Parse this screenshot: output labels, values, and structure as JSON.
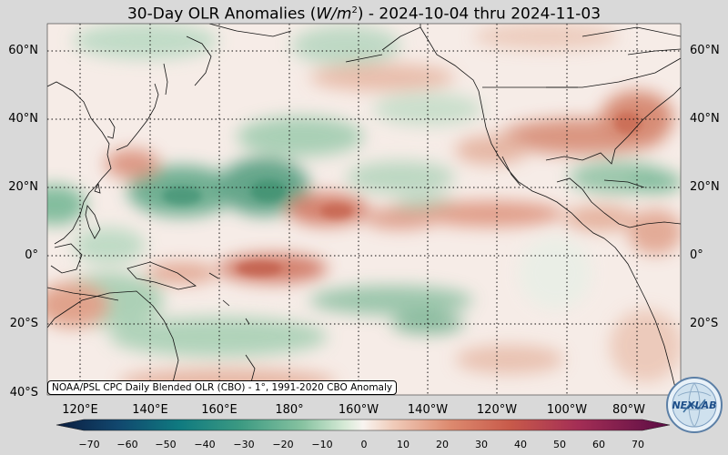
{
  "title": {
    "prefix": "30-Day OLR Anomalies (",
    "unit_italic": "W/m",
    "unit_sup": "2",
    "suffix": ") - 2024-10-04 thru 2024-11-03"
  },
  "lat_labels": [
    "60°N",
    "40°N",
    "20°N",
    "0°",
    "20°S",
    "40°S"
  ],
  "lon_labels": [
    "120°E",
    "140°E",
    "160°E",
    "180°",
    "160°W",
    "140°W",
    "120°W",
    "100°W",
    "80°W"
  ],
  "credit": "NOAA/PSL CPC Daily Blended OLR (CBO) - 1°, 1991-2020 CBO Anomaly",
  "colorbar": {
    "ticks": [
      "−70",
      "−60",
      "−50",
      "−40",
      "−30",
      "−20",
      "−10",
      "0",
      "10",
      "20",
      "30",
      "40",
      "50",
      "60",
      "70"
    ],
    "range": [
      -70,
      70
    ],
    "colors": [
      "#0b1d3f",
      "#11476e",
      "#0f7a80",
      "#3c9a82",
      "#86c2a0",
      "#cfe5cf",
      "#f7f2ee",
      "#f0c9b8",
      "#dd8b70",
      "#c85a4a",
      "#a42e55",
      "#6b0f4d"
    ]
  },
  "logo": {
    "text": "NEXLAB",
    "icon": "nexlab-globe-logo"
  },
  "map": {
    "projection": "equirectangular",
    "region": "Pacific basin, 40°S–70°N, 100°E–70°W",
    "grid": "dotted",
    "anomaly_colors": {
      "negative": "#4a9a78",
      "positive": "#cc6a55",
      "neutral": "#f8efea"
    }
  }
}
